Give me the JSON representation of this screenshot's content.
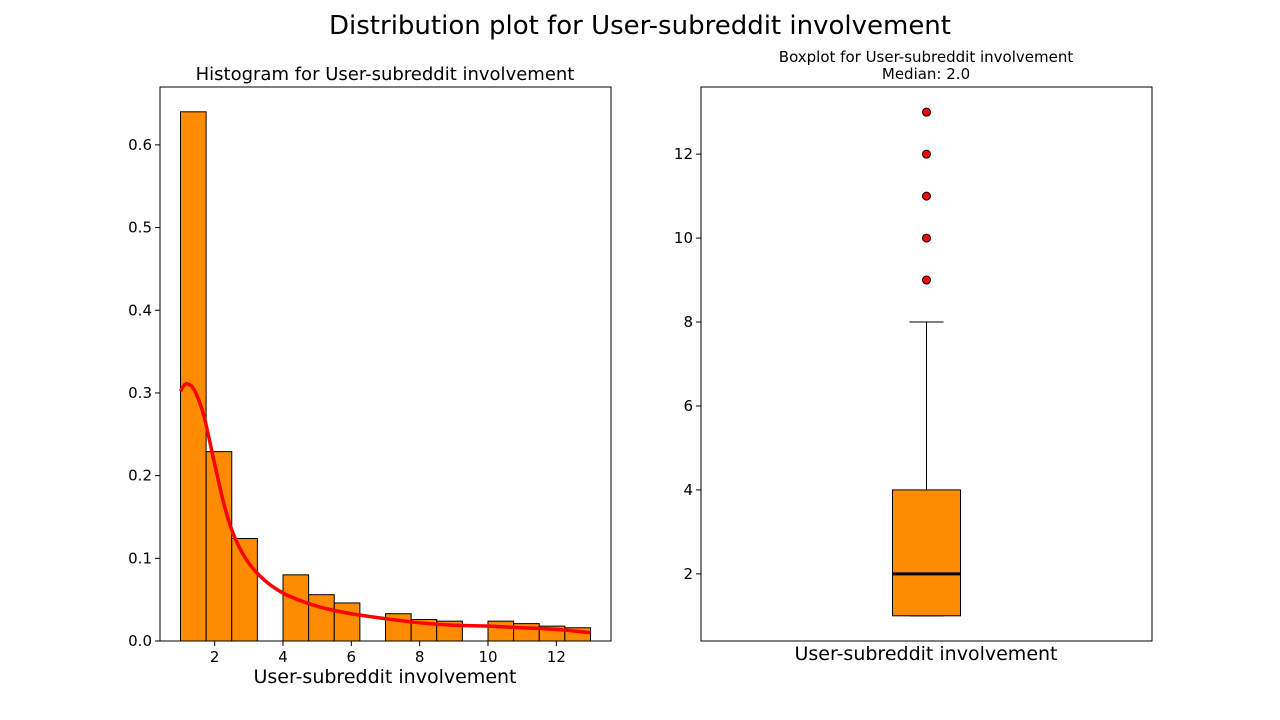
{
  "figure_title": "Distribution plot for User-subreddit involvement",
  "colors": {
    "bar_fill": "#ff8c00",
    "kde_line": "#ff0000",
    "outlier_fill": "#ff0000",
    "median_line": "#000000",
    "edge": "#000000"
  },
  "chart_data": [
    {
      "type": "bar",
      "title": "Histogram for User-subreddit involvement",
      "xlabel": "User-subreddit involvement",
      "ylabel": "",
      "xlim": [
        0.4,
        13.6
      ],
      "ylim": [
        0,
        0.67
      ],
      "xticks": [
        2,
        4,
        6,
        8,
        10,
        12
      ],
      "yticks": [
        0.0,
        0.1,
        0.2,
        0.3,
        0.4,
        0.5,
        0.6
      ],
      "ytick_labels": [
        "0.0",
        "0.1",
        "0.2",
        "0.3",
        "0.4",
        "0.5",
        "0.6"
      ],
      "bin_edges": [
        1.0,
        1.75,
        2.5,
        3.25,
        4.0,
        4.75,
        5.5,
        6.25,
        7.0,
        7.75,
        8.5,
        9.25,
        10.0,
        10.75,
        11.5,
        12.25,
        13.0
      ],
      "values": [
        0.64,
        0.229,
        0.124,
        0,
        0.08,
        0.056,
        0.046,
        0,
        0.033,
        0.026,
        0.024,
        0,
        0.024,
        0.021,
        0.018,
        0.016
      ],
      "kde": {
        "x": [
          1.0,
          1.1,
          1.2,
          1.35,
          1.5,
          1.7,
          2.0,
          2.3,
          2.6,
          3.0,
          3.5,
          4.0,
          4.5,
          5.0,
          5.5,
          6.0,
          7.0,
          8.0,
          9.0,
          10.0,
          11.0,
          12.0,
          13.0
        ],
        "y": [
          0.302,
          0.309,
          0.311,
          0.307,
          0.295,
          0.27,
          0.214,
          0.161,
          0.124,
          0.094,
          0.072,
          0.058,
          0.049,
          0.042,
          0.037,
          0.033,
          0.027,
          0.022,
          0.019,
          0.018,
          0.016,
          0.014,
          0.01
        ]
      }
    },
    {
      "type": "box",
      "title": "Boxplot for User-subreddit involvement",
      "subtitle": "Median: 2.0",
      "xlabel": "User-subreddit involvement",
      "ylabel": "",
      "ylim": [
        0.4,
        13.6
      ],
      "yticks": [
        2,
        4,
        6,
        8,
        10,
        12
      ],
      "q1": 1,
      "median": 2,
      "q3": 4,
      "whisker_low": 1,
      "whisker_high": 8,
      "outliers": [
        9,
        10,
        11,
        12,
        13
      ]
    }
  ]
}
